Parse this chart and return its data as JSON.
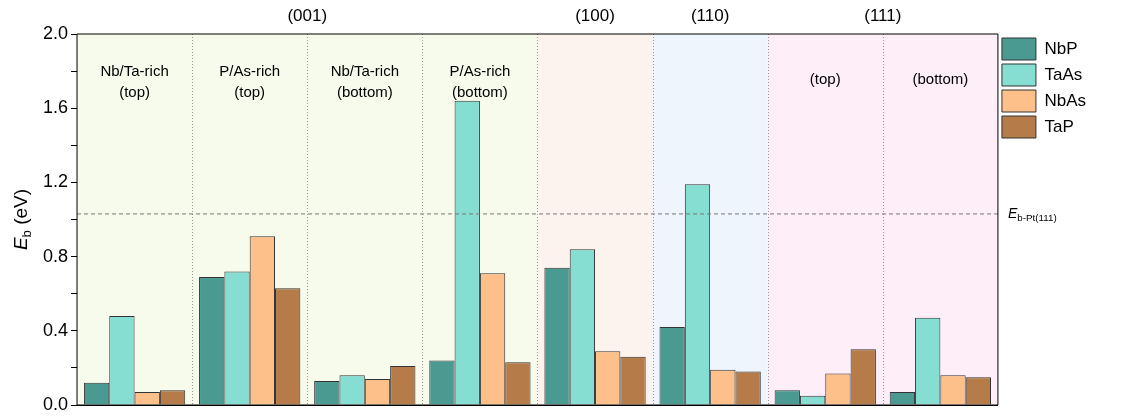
{
  "chart_data": {
    "type": "bar",
    "ylabel": "E$_{b}$ (eV)",
    "categories": [
      "Nb/Ta-rich (top)",
      "P/As-rich (top)",
      "Nb/Ta-rich (bottom)",
      "P/As-rich (bottom)",
      "(100)",
      "(110)",
      "(top)",
      "(bottom)"
    ],
    "series": [
      {
        "name": "NbP",
        "color": "#4a9a92",
        "values": [
          0.12,
          0.69,
          0.13,
          0.24,
          0.74,
          0.42,
          0.08,
          0.07
        ]
      },
      {
        "name": "TaAs",
        "color": "#86ddd2",
        "values": [
          0.48,
          0.72,
          0.16,
          1.64,
          0.84,
          1.19,
          0.05,
          0.47
        ]
      },
      {
        "name": "NbAs",
        "color": "#fdc08a",
        "values": [
          0.07,
          0.91,
          0.14,
          0.71,
          0.29,
          0.19,
          0.17,
          0.16
        ]
      },
      {
        "name": "TaP",
        "color": "#b57c4a",
        "values": [
          0.08,
          0.63,
          0.21,
          0.23,
          0.26,
          0.18,
          0.3,
          0.15
        ]
      }
    ],
    "ylim": [
      0,
      2
    ],
    "yticks": [
      {
        "value": 0,
        "label": "0.0"
      },
      {
        "value": 0.2,
        "label": null
      },
      {
        "value": 0.4,
        "label": "0.4"
      },
      {
        "value": 0.6,
        "label": null
      },
      {
        "value": 0.8,
        "label": "0.8"
      },
      {
        "value": 1,
        "label": null
      },
      {
        "value": 1.2,
        "label": "1.2"
      },
      {
        "value": 1.4,
        "label": null
      },
      {
        "value": 1.6,
        "label": "1.6"
      },
      {
        "value": 1.8,
        "label": null
      },
      {
        "value": 2,
        "label": "2.0"
      }
    ],
    "ref_lines": [
      {
        "axis": "y",
        "value": 1.03,
        "label": "E$_{b-Pt(111)}$",
        "color": "#777777",
        "line_style": "dashed"
      }
    ],
    "bands": [
      {
        "axis": "x",
        "from": "Nb/Ta-rich (top)",
        "to": "P/As-rich (bottom)",
        "label": "(001)",
        "color": "#f6fbec"
      },
      {
        "axis": "x",
        "from": "(100)",
        "to": "(100)",
        "color": "#fdf3ee"
      },
      {
        "axis": "x",
        "from": "(110)",
        "to": "(110)",
        "color": "#eef5fd"
      },
      {
        "axis": "x",
        "from": "(top)",
        "to": "(bottom)",
        "label": "(111)",
        "color": "#fdeef8"
      }
    ],
    "grid": "x",
    "legend": "right",
    "tick_labels": "y"
  }
}
